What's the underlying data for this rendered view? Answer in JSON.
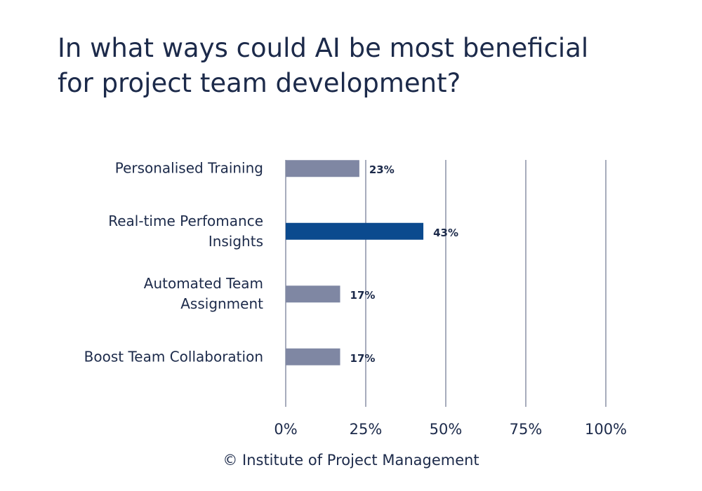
{
  "chart_data": {
    "type": "bar",
    "orientation": "horizontal",
    "title": "In what ways could AI be most beneficial\nfor project team development?",
    "categories": [
      "Personalised Training",
      "Real-time Perfomance\nInsights",
      "Automated Team\nAssignment",
      "Boost Team Collaboration"
    ],
    "values": [
      23,
      43,
      17,
      17
    ],
    "value_labels": [
      "23%",
      "43%",
      "17%",
      "17%"
    ],
    "colors": [
      "#7f87a3",
      "#0b4a8e",
      "#7f87a3",
      "#7f87a3"
    ],
    "xlim": [
      0,
      100
    ],
    "xticks": [
      {
        "value": 0,
        "label": "0%"
      },
      {
        "value": 25,
        "label": "25%"
      },
      {
        "value": 50,
        "label": "50%"
      },
      {
        "value": 75,
        "label": "75%"
      },
      {
        "value": 100,
        "label": "100%"
      }
    ],
    "grid": true,
    "source": "© Institute of Project Management"
  }
}
